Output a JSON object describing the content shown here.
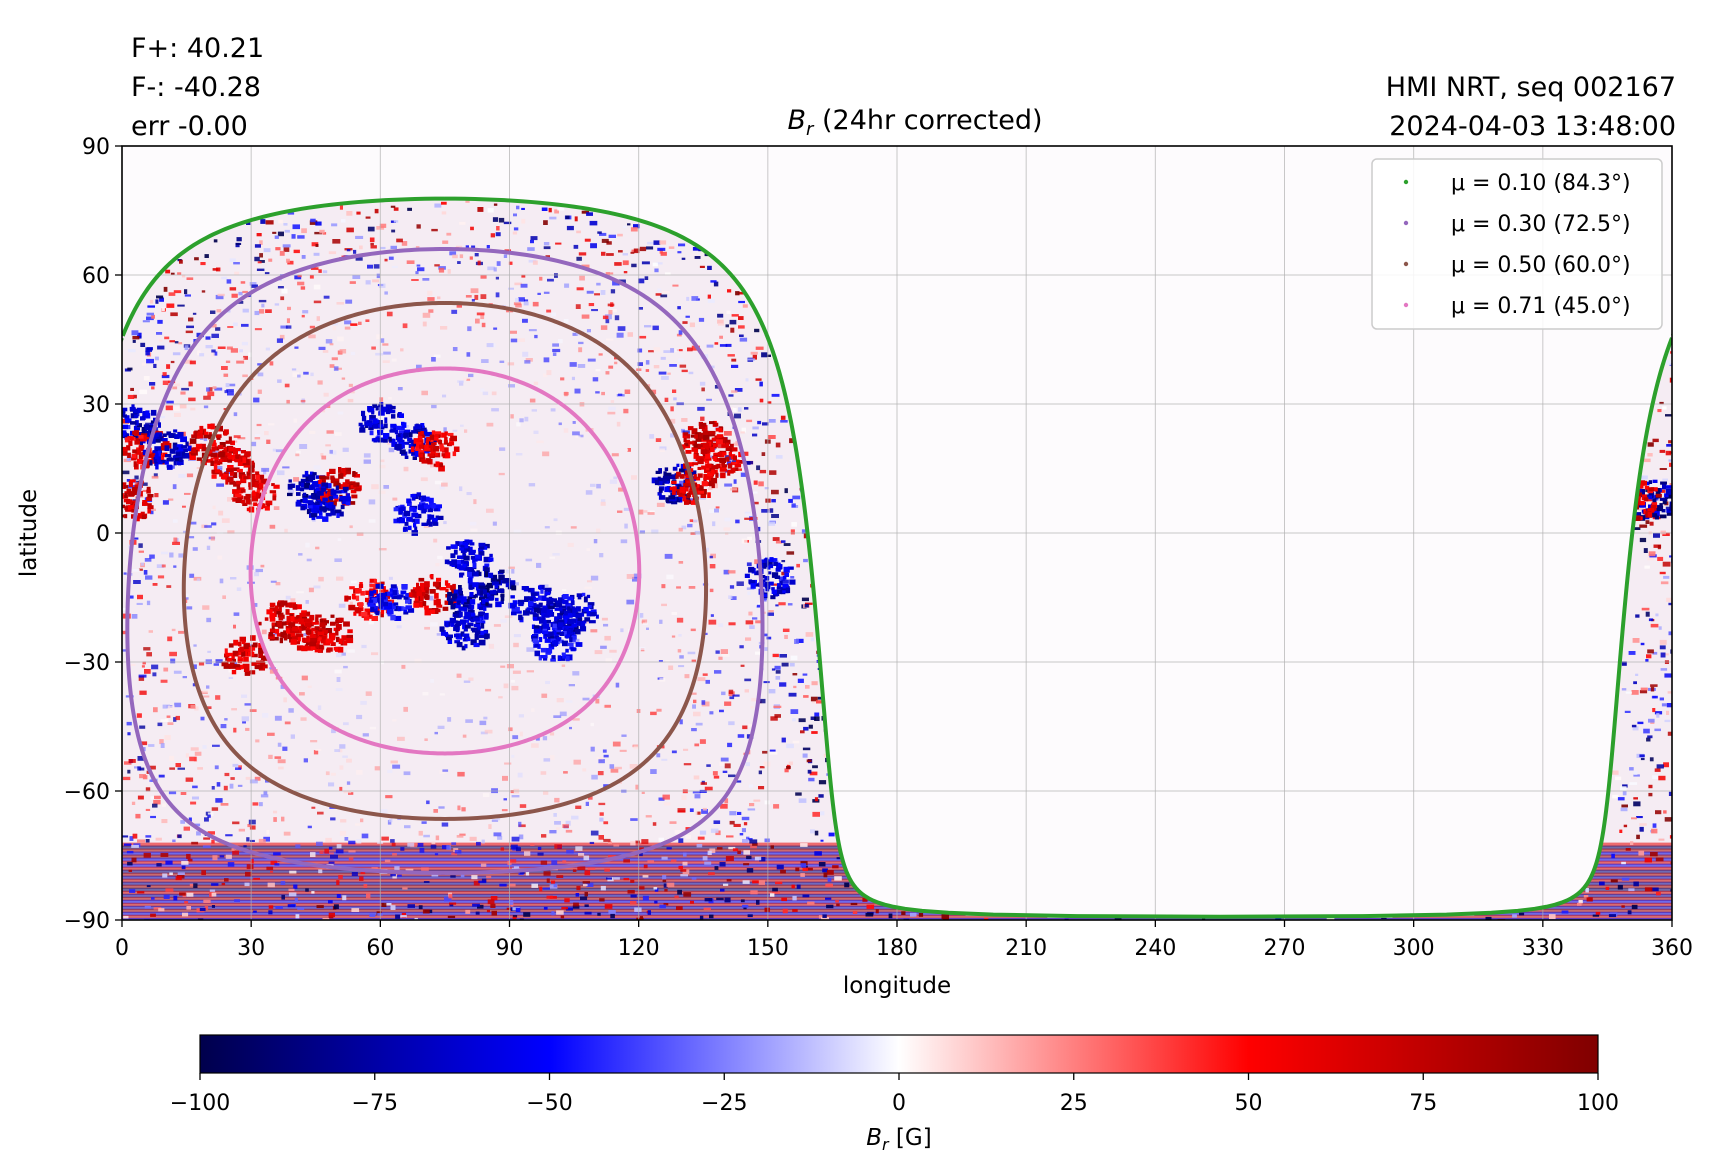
{
  "header": {
    "flux_pos": "F+: 40.21",
    "flux_neg": "F-: -40.28",
    "err": "err -0.00",
    "title_sym": "B",
    "title_sub": "r",
    "title_rest": " (24hr corrected)",
    "source": "HMI NRT, seq 002167",
    "timestamp": "2024-04-03 13:48:00"
  },
  "colorbar": {
    "label_sym": "B",
    "label_sub": "r",
    "label_unit": " [G]",
    "range": [
      -100,
      100
    ],
    "ticks": [
      "−100",
      "−75",
      "−50",
      "−25",
      "0",
      "25",
      "50",
      "75",
      "100"
    ],
    "colors": {
      "low": "#00004c",
      "mid_low": "#0000ff",
      "center": "#ffffff",
      "mid_high": "#ff0000",
      "high": "#800000"
    }
  },
  "chart_data": {
    "type": "heatmap",
    "title": "B_r (24hr corrected)",
    "xlabel": "longitude",
    "ylabel": "latitude",
    "xlim": [
      0,
      360
    ],
    "ylim": [
      -90,
      90
    ],
    "grid": true,
    "x_ticks": [
      "0",
      "30",
      "60",
      "90",
      "120",
      "150",
      "180",
      "210",
      "240",
      "270",
      "300",
      "330",
      "360"
    ],
    "y_ticks": [
      "90",
      "60",
      "30",
      "0",
      "−30",
      "−60",
      "−90"
    ],
    "disk_center": {
      "lon": 75,
      "lat": -6.5
    },
    "legend_position": "top-right",
    "series": [
      {
        "name": "μ = 0.10 (84.3°)",
        "mu": 0.1,
        "angle_deg": 84.3,
        "color": "#2ca02c"
      },
      {
        "name": "μ = 0.30 (72.5°)",
        "mu": 0.3,
        "angle_deg": 72.5,
        "color": "#9467bd"
      },
      {
        "name": "μ = 0.50 (60.0°)",
        "mu": 0.5,
        "angle_deg": 60.0,
        "color": "#8c564b"
      },
      {
        "name": "μ = 0.71 (45.0°)",
        "mu": 0.71,
        "angle_deg": 45.0,
        "color": "#e377c2"
      }
    ],
    "active_regions": [
      {
        "lon": 3,
        "lat": 26,
        "value": -90
      },
      {
        "lon": 5,
        "lat": 20,
        "value": 80
      },
      {
        "lon": 10,
        "lat": 20,
        "value": -85
      },
      {
        "lon": 2,
        "lat": 8,
        "value": 85
      },
      {
        "lon": 20,
        "lat": 21,
        "value": 90
      },
      {
        "lon": 25,
        "lat": 16,
        "value": 85
      },
      {
        "lon": 30,
        "lat": 10,
        "value": 80
      },
      {
        "lon": 43,
        "lat": 10,
        "value": -90
      },
      {
        "lon": 50,
        "lat": 11,
        "value": 90
      },
      {
        "lon": 47,
        "lat": 8,
        "value": -80
      },
      {
        "lon": 60,
        "lat": 26,
        "value": -80
      },
      {
        "lon": 67,
        "lat": 22,
        "value": -85
      },
      {
        "lon": 72,
        "lat": 20,
        "value": 80
      },
      {
        "lon": 68,
        "lat": 5,
        "value": -75
      },
      {
        "lon": 80,
        "lat": -5,
        "value": -80
      },
      {
        "lon": 37,
        "lat": -20,
        "value": 90
      },
      {
        "lon": 42,
        "lat": -22,
        "value": 85
      },
      {
        "lon": 47,
        "lat": -23,
        "value": 85
      },
      {
        "lon": 57,
        "lat": -15,
        "value": 75
      },
      {
        "lon": 62,
        "lat": -15,
        "value": -70
      },
      {
        "lon": 72,
        "lat": -14,
        "value": 85
      },
      {
        "lon": 80,
        "lat": -16,
        "value": -90
      },
      {
        "lon": 85,
        "lat": -12,
        "value": -95
      },
      {
        "lon": 79,
        "lat": -22,
        "value": -80
      },
      {
        "lon": 95,
        "lat": -16,
        "value": -75
      },
      {
        "lon": 100,
        "lat": -20,
        "value": -85
      },
      {
        "lon": 105,
        "lat": -18,
        "value": -80
      },
      {
        "lon": 100,
        "lat": -25,
        "value": -70
      },
      {
        "lon": 28,
        "lat": -28,
        "value": 85
      },
      {
        "lon": 128,
        "lat": 12,
        "value": -90
      },
      {
        "lon": 132,
        "lat": 12,
        "value": 85
      },
      {
        "lon": 135,
        "lat": 22,
        "value": 90
      },
      {
        "lon": 138,
        "lat": 18,
        "value": 85
      },
      {
        "lon": 150,
        "lat": -10,
        "value": -80
      },
      {
        "lon": 355,
        "lat": 8,
        "value": -95
      },
      {
        "lon": 351,
        "lat": 8,
        "value": 85
      }
    ]
  }
}
